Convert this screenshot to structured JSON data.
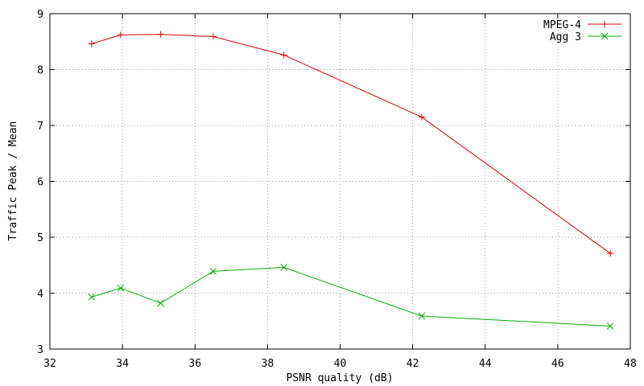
{
  "chart_data": {
    "type": "line",
    "title": "",
    "xlabel": "PSNR quality (dB)",
    "ylabel": "Traffic Peak / Mean",
    "xlim": [
      32,
      48
    ],
    "ylim": [
      3,
      9
    ],
    "xticks": [
      32,
      34,
      36,
      38,
      40,
      42,
      44,
      46,
      48
    ],
    "yticks": [
      3,
      4,
      5,
      6,
      7,
      8,
      9
    ],
    "grid": true,
    "legend_position": "top-right",
    "series": [
      {
        "name": "MPEG-4",
        "color": "#e00000",
        "marker": "plus",
        "points": [
          [
            33.15,
            8.46
          ],
          [
            33.95,
            8.62
          ],
          [
            35.05,
            8.63
          ],
          [
            36.5,
            8.59
          ],
          [
            38.45,
            8.26
          ],
          [
            42.25,
            7.15
          ],
          [
            47.45,
            4.71
          ]
        ]
      },
      {
        "name": "Agg 3",
        "color": "#00b000",
        "marker": "x",
        "points": [
          [
            33.15,
            3.93
          ],
          [
            33.95,
            4.09
          ],
          [
            35.05,
            3.82
          ],
          [
            36.5,
            4.39
          ],
          [
            38.45,
            4.46
          ],
          [
            42.25,
            3.59
          ],
          [
            47.45,
            3.41
          ]
        ]
      }
    ]
  }
}
